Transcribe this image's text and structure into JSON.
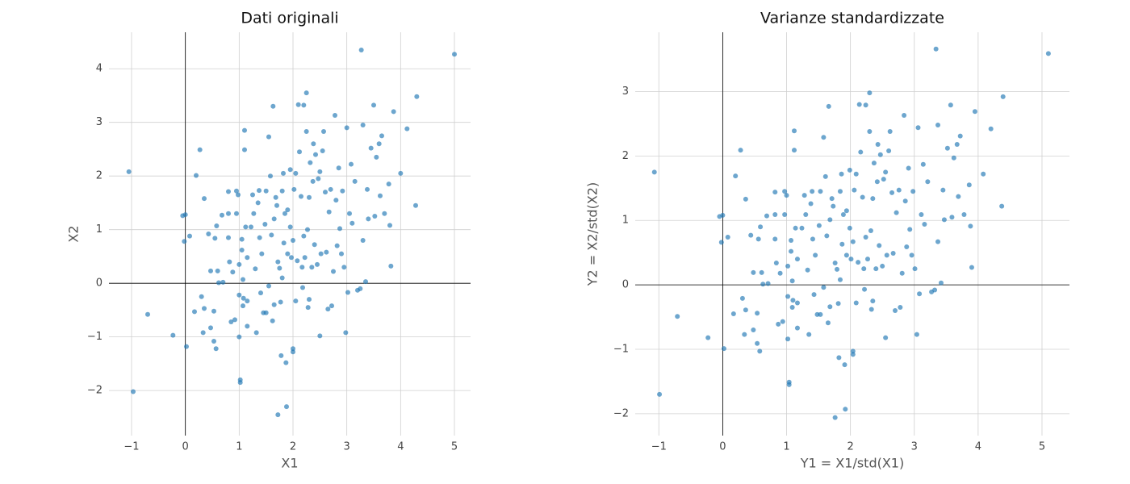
{
  "chart_data": [
    {
      "type": "scatter",
      "title": "Dati originali",
      "x_label": "X1",
      "y_label": "X2",
      "color": "#1f77b4",
      "grid": true,
      "zero_lines": true,
      "xlim": [
        -1.42,
        5.3
      ],
      "ylim": [
        -2.84,
        4.68
      ],
      "xticks": [
        {
          "value": -1,
          "label": "−1"
        },
        0,
        1,
        2,
        3,
        4,
        5
      ],
      "yticks": [
        {
          "value": -2,
          "label": "−2"
        },
        {
          "value": -1,
          "label": "−1"
        },
        0,
        1,
        2,
        3,
        4
      ],
      "x": [
        -1.05,
        -0.97,
        -0.7,
        -0.23,
        -0.05,
        0,
        -0.02,
        0.02,
        0.08,
        0.2,
        0.27,
        0.17,
        0.3,
        0.35,
        0.33,
        0.35,
        0.43,
        0.47,
        0.47,
        0.53,
        0.53,
        0.57,
        0.55,
        0.58,
        0.6,
        0.62,
        0.68,
        0.7,
        0.8,
        0.8,
        0.8,
        0.82,
        0.85,
        0.88,
        0.92,
        0.95,
        0.98,
        0.95,
        1.0,
        1.0,
        1.0,
        1.02,
        1.02,
        1.05,
        1.05,
        1.07,
        1.07,
        1.08,
        1.1,
        1.1,
        1.12,
        1.15,
        1.15,
        1.15,
        1.22,
        1.25,
        1.27,
        1.3,
        1.32,
        1.35,
        1.37,
        1.38,
        1.4,
        1.42,
        1.45,
        1.48,
        1.5,
        1.5,
        1.55,
        1.55,
        1.58,
        1.6,
        1.62,
        1.63,
        1.65,
        1.65,
        1.68,
        1.7,
        1.72,
        1.72,
        1.75,
        1.77,
        1.78,
        1.8,
        1.8,
        1.82,
        1.83,
        1.85,
        1.87,
        1.88,
        1.9,
        1.9,
        1.95,
        1.95,
        1.97,
        2.0,
        2.0,
        2.0,
        2.02,
        2.05,
        2.05,
        2.08,
        2.1,
        2.12,
        2.15,
        2.17,
        2.18,
        2.2,
        2.2,
        2.22,
        2.25,
        2.25,
        2.27,
        2.28,
        2.3,
        2.3,
        2.32,
        2.35,
        2.37,
        2.38,
        2.4,
        2.42,
        2.45,
        2.47,
        2.5,
        2.5,
        2.52,
        2.55,
        2.57,
        2.6,
        2.62,
        2.65,
        2.67,
        2.7,
        2.72,
        2.75,
        2.78,
        2.8,
        2.82,
        2.85,
        2.87,
        2.9,
        2.92,
        2.95,
        2.98,
        3.0,
        3.02,
        3.05,
        3.08,
        3.1,
        3.15,
        3.2,
        3.25,
        3.27,
        3.3,
        3.3,
        3.35,
        3.38,
        3.4,
        3.45,
        3.5,
        3.52,
        3.55,
        3.6,
        3.62,
        3.65,
        3.7,
        3.78,
        3.8,
        3.82,
        3.87,
        4.0,
        4.12,
        4.28,
        4.3,
        5.0
      ],
      "y": [
        2.08,
        -2.02,
        -0.58,
        -0.97,
        1.26,
        1.28,
        0.78,
        -1.18,
        0.88,
        2.01,
        2.49,
        -0.53,
        -0.25,
        -0.47,
        -0.92,
        1.58,
        0.92,
        0.23,
        -0.83,
        -0.52,
        -1.08,
        -1.22,
        0.84,
        1.07,
        0.23,
        0.01,
        1.27,
        0.02,
        1.3,
        0.85,
        1.71,
        0.4,
        -0.72,
        0.21,
        -0.68,
        1.72,
        1.65,
        1.3,
        0.35,
        -1.0,
        -0.22,
        -1.8,
        -1.85,
        0.82,
        0.62,
        0.07,
        -0.42,
        -0.28,
        2.85,
        2.49,
        1.05,
        -0.8,
        0.48,
        -0.33,
        1.05,
        1.65,
        1.3,
        0.27,
        -0.92,
        1.5,
        1.73,
        0.85,
        -0.18,
        0.55,
        -0.55,
        1.1,
        1.72,
        -0.55,
        2.73,
        -0.05,
        2.0,
        0.9,
        -0.7,
        3.3,
        1.2,
        -0.4,
        1.6,
        1.45,
        -2.45,
        0.4,
        0.28,
        -0.35,
        -1.35,
        1.72,
        0.1,
        2.05,
        0.75,
        1.3,
        -1.48,
        -2.3,
        1.37,
        0.55,
        2.12,
        1.05,
        0.48,
        -1.22,
        -1.28,
        0.8,
        1.75,
        -0.33,
        2.05,
        0.42,
        3.33,
        2.45,
        1.62,
        0.3,
        -0.08,
        0.88,
        3.32,
        0.48,
        3.55,
        2.83,
        1.0,
        -0.45,
        -0.3,
        1.6,
        2.25,
        0.3,
        1.9,
        2.6,
        0.72,
        2.4,
        0.35,
        1.95,
        -0.98,
        2.08,
        0.55,
        2.47,
        2.83,
        1.7,
        0.58,
        -0.48,
        1.33,
        1.75,
        -0.42,
        0.22,
        3.13,
        1.55,
        0.7,
        2.15,
        1.02,
        0.55,
        1.72,
        0.3,
        -0.92,
        2.9,
        -0.17,
        1.3,
        2.22,
        1.12,
        1.9,
        -0.13,
        -0.1,
        4.35,
        2.95,
        0.8,
        0.03,
        1.75,
        1.2,
        2.52,
        3.32,
        1.25,
        2.35,
        2.6,
        1.63,
        2.75,
        1.3,
        1.85,
        1.08,
        0.32,
        3.2,
        2.05,
        2.88,
        1.45,
        3.48,
        4.27
      ]
    },
    {
      "type": "scatter",
      "title": "Varianze standardizzate",
      "x_label": "Y1 = X1/std(X1)",
      "y_label": "Y2 = X2/std(X2)",
      "color": "#1f77b4",
      "grid": true,
      "zero_lines": true,
      "xlim": [
        -1.37,
        5.43
      ],
      "ylim": [
        -2.34,
        3.92
      ],
      "xticks": [
        {
          "value": -1,
          "label": "−1"
        },
        0,
        1,
        2,
        3,
        4,
        5
      ],
      "yticks": [
        {
          "value": -2,
          "label": "−2"
        },
        {
          "value": -1,
          "label": "−1"
        },
        0,
        1,
        2,
        3
      ],
      "x": [
        -1.07,
        -0.99,
        -0.71,
        -0.23,
        -0.05,
        0,
        -0.02,
        0.02,
        0.08,
        0.2,
        0.28,
        0.17,
        0.31,
        0.36,
        0.34,
        0.36,
        0.44,
        0.48,
        0.48,
        0.54,
        0.54,
        0.58,
        0.56,
        0.59,
        0.61,
        0.63,
        0.69,
        0.71,
        0.82,
        0.82,
        0.82,
        0.84,
        0.87,
        0.9,
        0.94,
        0.97,
        1.0,
        0.97,
        1.02,
        1.02,
        1.02,
        1.04,
        1.04,
        1.07,
        1.07,
        1.09,
        1.09,
        1.1,
        1.12,
        1.12,
        1.14,
        1.17,
        1.17,
        1.17,
        1.24,
        1.28,
        1.3,
        1.33,
        1.35,
        1.38,
        1.4,
        1.41,
        1.43,
        1.45,
        1.48,
        1.51,
        1.53,
        1.53,
        1.58,
        1.58,
        1.61,
        1.63,
        1.65,
        1.66,
        1.68,
        1.68,
        1.71,
        1.73,
        1.76,
        1.76,
        1.79,
        1.81,
        1.82,
        1.84,
        1.84,
        1.86,
        1.87,
        1.89,
        1.91,
        1.92,
        1.94,
        1.94,
        1.99,
        1.99,
        2.01,
        2.04,
        2.04,
        2.04,
        2.06,
        2.09,
        2.09,
        2.12,
        2.14,
        2.16,
        2.19,
        2.21,
        2.22,
        2.24,
        2.24,
        2.27,
        2.3,
        2.3,
        2.32,
        2.33,
        2.35,
        2.35,
        2.37,
        2.4,
        2.42,
        2.43,
        2.45,
        2.47,
        2.5,
        2.52,
        2.55,
        2.55,
        2.57,
        2.6,
        2.62,
        2.65,
        2.67,
        2.7,
        2.72,
        2.76,
        2.78,
        2.81,
        2.84,
        2.86,
        2.88,
        2.91,
        2.93,
        2.96,
        2.98,
        3.01,
        3.04,
        3.06,
        3.08,
        3.11,
        3.14,
        3.16,
        3.21,
        3.27,
        3.32,
        3.34,
        3.37,
        3.37,
        3.42,
        3.45,
        3.47,
        3.52,
        3.57,
        3.59,
        3.62,
        3.67,
        3.69,
        3.72,
        3.78,
        3.86,
        3.88,
        3.9,
        3.95,
        4.08,
        4.2,
        4.37,
        4.39,
        5.1
      ],
      "y": [
        1.75,
        -1.7,
        -0.49,
        -0.82,
        1.06,
        1.08,
        0.66,
        -0.99,
        0.74,
        1.69,
        2.09,
        -0.45,
        -0.21,
        -0.39,
        -0.77,
        1.33,
        0.77,
        0.19,
        -0.7,
        -0.44,
        -0.91,
        -1.03,
        0.71,
        0.9,
        0.19,
        0.01,
        1.07,
        0.02,
        1.09,
        0.71,
        1.44,
        0.34,
        -0.61,
        0.18,
        -0.57,
        1.45,
        1.39,
        1.09,
        0.29,
        -0.84,
        -0.18,
        -1.51,
        -1.55,
        0.69,
        0.52,
        0.06,
        -0.35,
        -0.24,
        2.39,
        2.09,
        0.88,
        -0.67,
        0.4,
        -0.28,
        0.88,
        1.39,
        1.09,
        0.23,
        -0.77,
        1.26,
        1.45,
        0.71,
        -0.15,
        0.46,
        -0.46,
        0.92,
        1.45,
        -0.46,
        2.29,
        -0.04,
        1.68,
        0.76,
        -0.59,
        2.77,
        1.01,
        -0.34,
        1.34,
        1.22,
        -2.06,
        0.34,
        0.24,
        -0.29,
        -1.13,
        1.45,
        0.08,
        1.72,
        0.63,
        1.09,
        -1.24,
        -1.93,
        1.15,
        0.46,
        1.78,
        0.88,
        0.4,
        -1.03,
        -1.08,
        0.67,
        1.47,
        -0.28,
        1.72,
        0.35,
        2.8,
        2.06,
        1.36,
        0.25,
        -0.07,
        0.74,
        2.79,
        0.4,
        2.98,
        2.38,
        0.84,
        -0.38,
        -0.25,
        1.34,
        1.89,
        0.25,
        1.6,
        2.18,
        0.61,
        2.02,
        0.29,
        1.64,
        -0.82,
        1.75,
        0.46,
        2.08,
        2.38,
        1.43,
        0.49,
        -0.4,
        1.12,
        1.47,
        -0.35,
        0.18,
        2.63,
        1.3,
        0.59,
        1.81,
        0.86,
        0.46,
        1.45,
        0.25,
        -0.77,
        2.44,
        -0.14,
        1.09,
        1.87,
        0.94,
        1.6,
        -0.11,
        -0.08,
        3.66,
        2.48,
        0.67,
        0.03,
        1.47,
        1.01,
        2.12,
        2.79,
        1.05,
        1.97,
        2.18,
        1.37,
        2.31,
        1.09,
        1.55,
        0.91,
        0.27,
        2.69,
        1.72,
        2.42,
        1.22,
        2.92,
        3.59
      ]
    }
  ]
}
